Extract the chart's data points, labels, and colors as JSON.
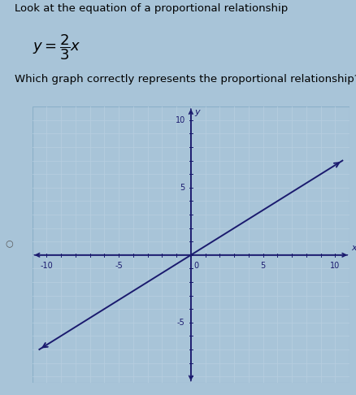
{
  "title_line1": "Look at the equation of a proportional relationship",
  "question": "Which graph correctly represents the proportional relationship?",
  "slope_num": 2,
  "slope_den": 3,
  "x_ticks_labeled": [
    -10,
    -5,
    0,
    5,
    10
  ],
  "y_ticks_labeled": [
    -5,
    5,
    10
  ],
  "grid_color": "#b8cfe0",
  "plot_bg_color": "#eef4f8",
  "outer_bg": "#a8c4d8",
  "line_color": "#1a1a6e",
  "axis_color": "#1a1a6e",
  "line_width": 1.4,
  "x_axis_min": -11.0,
  "x_axis_max": 11.0,
  "y_axis_min": -9.5,
  "y_axis_max": 11.0,
  "line_x1": -10.5,
  "line_x2": 10.5
}
